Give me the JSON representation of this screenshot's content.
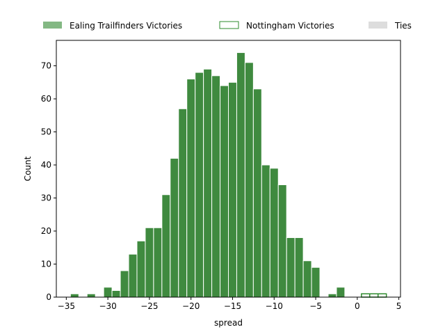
{
  "chart_data": {
    "type": "bar",
    "subtype": "histogram",
    "xlabel": "spread",
    "ylabel": "Count",
    "xlim": [
      -36.2,
      5.2
    ],
    "ylim": [
      0,
      77.7
    ],
    "x_ticks": [
      -35,
      -30,
      -25,
      -20,
      -15,
      -10,
      -5,
      0,
      5
    ],
    "y_ticks": [
      0,
      10,
      20,
      30,
      40,
      50,
      60,
      70
    ],
    "bin_width": 1,
    "grid": false,
    "legend_position": "top, horizontal, above plot",
    "legend": [
      {
        "label": "Ealing Trailfinders Victories",
        "style": "filled",
        "color": "#4e9a4e"
      },
      {
        "label": "Nottingham Victories",
        "style": "outline",
        "color": "#2e8b2e"
      },
      {
        "label": "Ties",
        "style": "filled",
        "color": "#dddddd"
      }
    ],
    "series": [
      {
        "name": "Ealing Trailfinders Victories",
        "fill": "#3f8a3f",
        "edge": "#ffffff",
        "bins": [
          {
            "x": -34,
            "count": 1
          },
          {
            "x": -32,
            "count": 1
          },
          {
            "x": -30,
            "count": 3
          },
          {
            "x": -29,
            "count": 2
          },
          {
            "x": -28,
            "count": 8
          },
          {
            "x": -27,
            "count": 13
          },
          {
            "x": -26,
            "count": 17
          },
          {
            "x": -25,
            "count": 21
          },
          {
            "x": -24,
            "count": 21
          },
          {
            "x": -23,
            "count": 31
          },
          {
            "x": -22,
            "count": 42
          },
          {
            "x": -21,
            "count": 57
          },
          {
            "x": -20,
            "count": 66
          },
          {
            "x": -19,
            "count": 68
          },
          {
            "x": -18,
            "count": 69
          },
          {
            "x": -17,
            "count": 67
          },
          {
            "x": -16,
            "count": 64
          },
          {
            "x": -15,
            "count": 65
          },
          {
            "x": -14,
            "count": 74
          },
          {
            "x": -13,
            "count": 71
          },
          {
            "x": -12,
            "count": 63
          },
          {
            "x": -11,
            "count": 40
          },
          {
            "x": -10,
            "count": 39
          },
          {
            "x": -9,
            "count": 34
          },
          {
            "x": -8,
            "count": 18
          },
          {
            "x": -7,
            "count": 18
          },
          {
            "x": -6,
            "count": 11
          },
          {
            "x": -5,
            "count": 9
          },
          {
            "x": -3,
            "count": 1
          },
          {
            "x": -2,
            "count": 3
          }
        ]
      },
      {
        "name": "Nottingham Victories",
        "fill": "none",
        "edge": "#2e8b2e",
        "bins": [
          {
            "x": 1,
            "count": 1
          },
          {
            "x": 2,
            "count": 1
          },
          {
            "x": 3,
            "count": 1
          }
        ]
      }
    ]
  }
}
